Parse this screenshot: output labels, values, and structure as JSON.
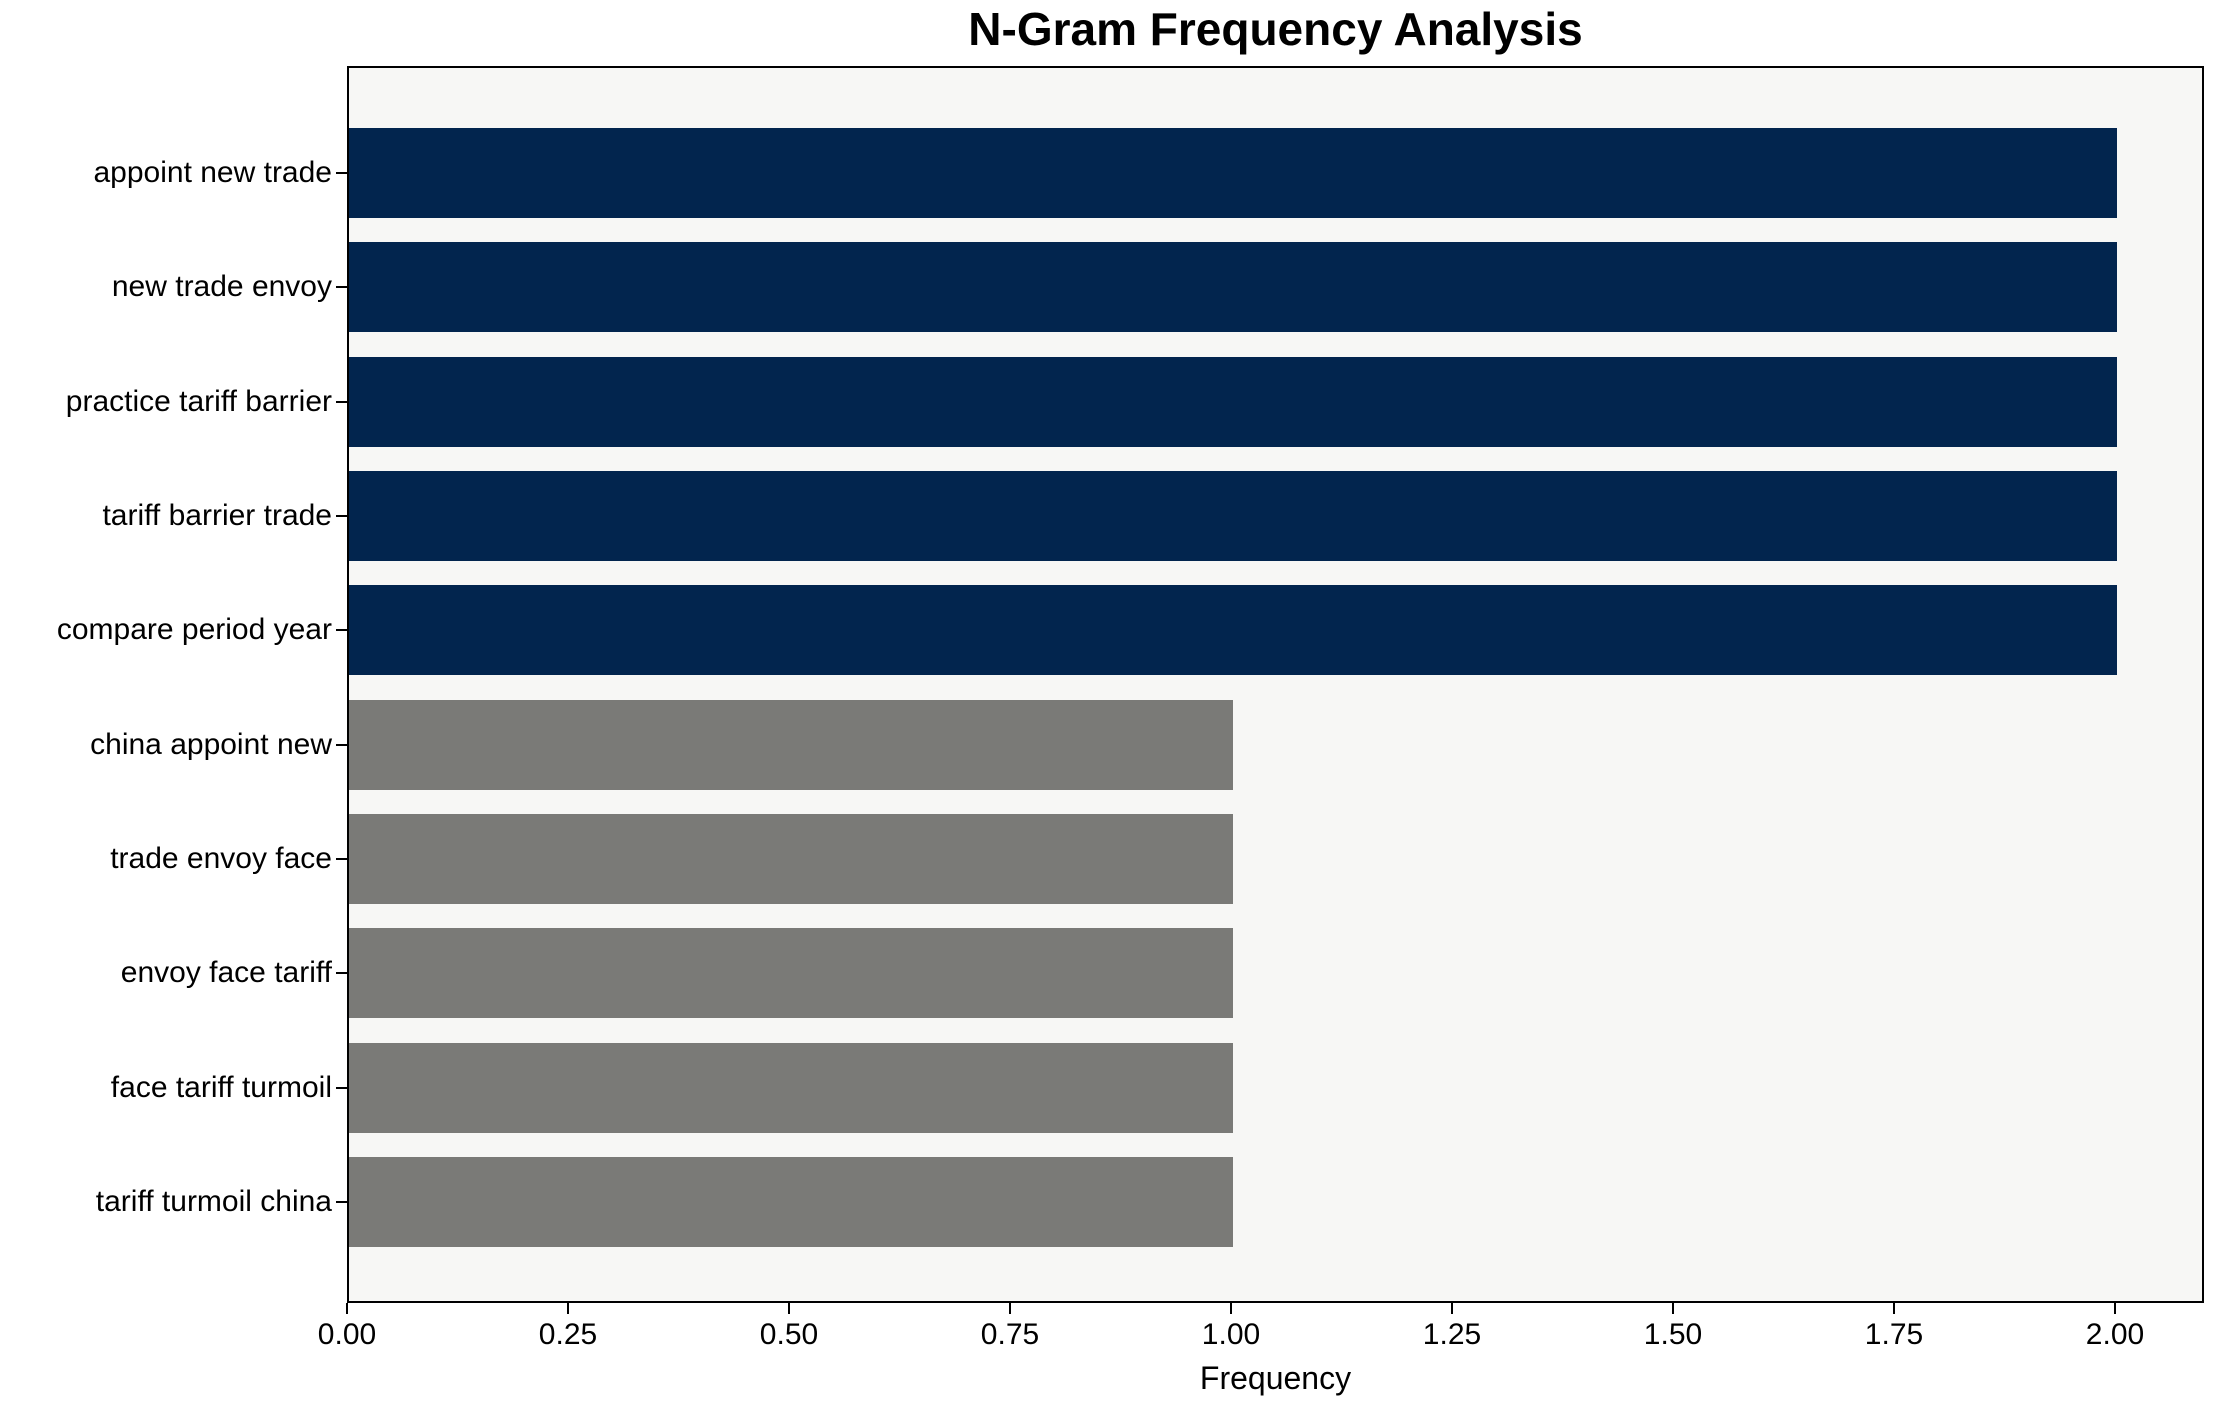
{
  "chart_data": {
    "type": "bar",
    "orientation": "horizontal",
    "title": "N-Gram Frequency Analysis",
    "xlabel": "Frequency",
    "ylabel": "",
    "categories": [
      "appoint new trade",
      "new trade envoy",
      "practice tariff barrier",
      "tariff barrier trade",
      "compare period year",
      "china appoint new",
      "trade envoy face",
      "envoy face tariff",
      "face tariff turmoil",
      "tariff turmoil china"
    ],
    "values": [
      2,
      2,
      2,
      2,
      2,
      1,
      1,
      1,
      1,
      1
    ],
    "bar_colors": [
      "#02254e",
      "#02254e",
      "#02254e",
      "#02254e",
      "#02254e",
      "#7a7a77",
      "#7a7a77",
      "#7a7a77",
      "#7a7a77",
      "#7a7a77"
    ],
    "xticks": [
      0.0,
      0.25,
      0.5,
      0.75,
      1.0,
      1.25,
      1.5,
      1.75,
      2.0
    ],
    "xtick_labels": [
      "0.00",
      "0.25",
      "0.50",
      "0.75",
      "1.00",
      "1.25",
      "1.50",
      "1.75",
      "2.00"
    ],
    "xlim": [
      0,
      2.1
    ],
    "grid": false,
    "legend": "none",
    "colors": {
      "high_freq_bar": "#02254e",
      "low_freq_bar": "#7a7a77",
      "plot_background": "#f7f7f5",
      "figure_background": "#ffffff",
      "axis_and_text": "#000000"
    }
  }
}
